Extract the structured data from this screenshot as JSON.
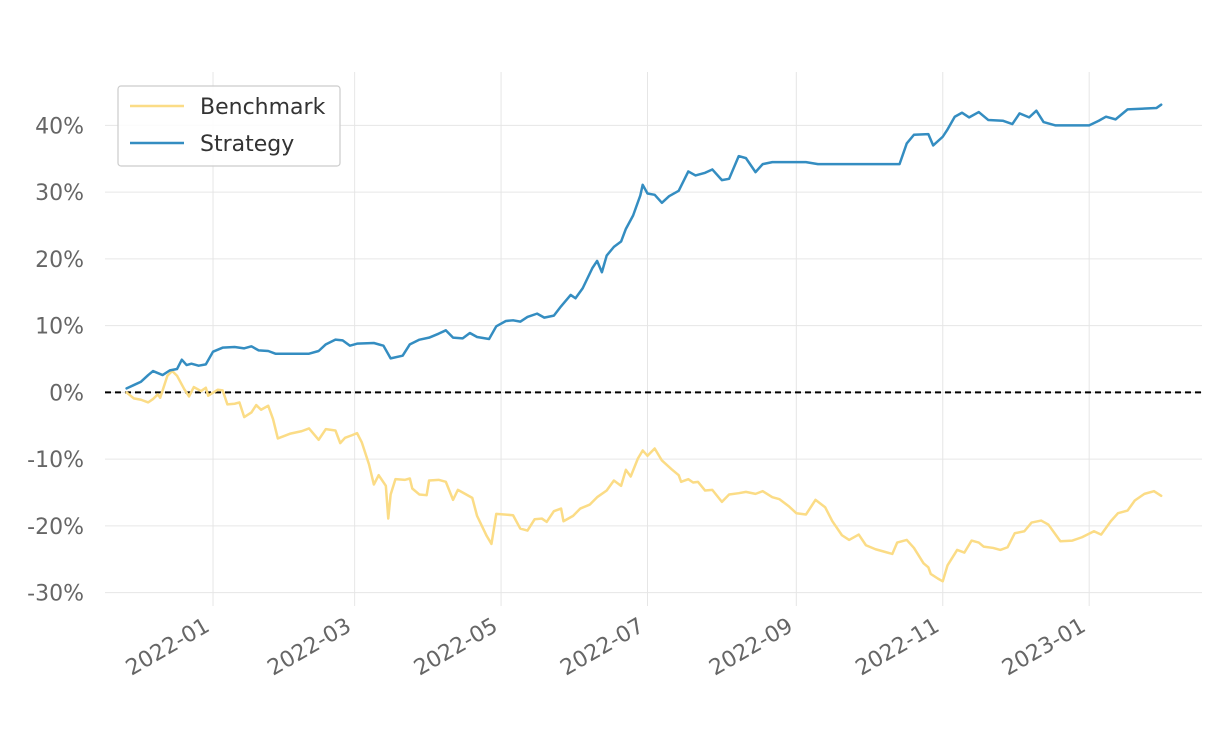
{
  "chart_data": {
    "type": "line",
    "title": "",
    "xlabel": "",
    "ylabel": "",
    "x_ticks": [
      "2022-01",
      "2022-03",
      "2022-05",
      "2022-07",
      "2022-09",
      "2022-11",
      "2023-01"
    ],
    "y_ticks": [
      {
        "value": 40,
        "label": "40%"
      },
      {
        "value": 30,
        "label": "30%"
      },
      {
        "value": 20,
        "label": "20%"
      },
      {
        "value": 10,
        "label": "10%"
      },
      {
        "value": 0,
        "label": "0%"
      },
      {
        "value": -10,
        "label": "-10%"
      },
      {
        "value": -20,
        "label": "-20%"
      },
      {
        "value": -30,
        "label": "-30%"
      }
    ],
    "xlim": [
      "2021-11-17",
      "2023-02-17"
    ],
    "ylim": [
      -32,
      48
    ],
    "grid": true,
    "zero_line": {
      "value": 0,
      "style": "dashed",
      "color": "#000000"
    },
    "legend": {
      "position": "top-left"
    },
    "series": [
      {
        "name": "Benchmark",
        "color": "#fbdc86",
        "points": [
          [
            "2021-11-26",
            0.0
          ],
          [
            "2021-11-29",
            -0.9
          ],
          [
            "2021-12-02",
            -1.1
          ],
          [
            "2021-12-05",
            -1.5
          ],
          [
            "2021-12-07",
            -1.0
          ],
          [
            "2021-12-09",
            -0.3
          ],
          [
            "2021-12-10",
            -0.8
          ],
          [
            "2021-12-13",
            2.5
          ],
          [
            "2021-12-15",
            3.2
          ],
          [
            "2021-12-17",
            2.5
          ],
          [
            "2021-12-20",
            0.5
          ],
          [
            "2021-12-22",
            -0.6
          ],
          [
            "2021-12-24",
            0.8
          ],
          [
            "2021-12-27",
            0.2
          ],
          [
            "2021-12-29",
            0.7
          ],
          [
            "2021-12-30",
            -0.5
          ],
          [
            "2022-01-03",
            0.4
          ],
          [
            "2022-01-05",
            0.3
          ],
          [
            "2022-01-07",
            -1.8
          ],
          [
            "2022-01-10",
            -1.7
          ],
          [
            "2022-01-12",
            -1.5
          ],
          [
            "2022-01-14",
            -3.7
          ],
          [
            "2022-01-17",
            -3.0
          ],
          [
            "2022-01-19",
            -1.9
          ],
          [
            "2022-01-21",
            -2.6
          ],
          [
            "2022-01-24",
            -2.0
          ],
          [
            "2022-01-26",
            -4.0
          ],
          [
            "2022-01-28",
            -6.9
          ],
          [
            "2022-02-02",
            -6.2
          ],
          [
            "2022-02-07",
            -5.8
          ],
          [
            "2022-02-10",
            -5.4
          ],
          [
            "2022-02-14",
            -7.1
          ],
          [
            "2022-02-17",
            -5.5
          ],
          [
            "2022-02-21",
            -5.7
          ],
          [
            "2022-02-23",
            -7.6
          ],
          [
            "2022-02-25",
            -6.8
          ],
          [
            "2022-02-28",
            -6.4
          ],
          [
            "2022-03-02",
            -6.1
          ],
          [
            "2022-03-04",
            -7.5
          ],
          [
            "2022-03-07",
            -10.8
          ],
          [
            "2022-03-09",
            -13.8
          ],
          [
            "2022-03-11",
            -12.4
          ],
          [
            "2022-03-14",
            -14.0
          ],
          [
            "2022-03-15",
            -18.9
          ],
          [
            "2022-03-16",
            -15.3
          ],
          [
            "2022-03-18",
            -13.0
          ],
          [
            "2022-03-22",
            -13.1
          ],
          [
            "2022-03-24",
            -12.9
          ],
          [
            "2022-03-25",
            -14.4
          ],
          [
            "2022-03-28",
            -15.3
          ],
          [
            "2022-03-31",
            -15.4
          ],
          [
            "2022-04-01",
            -13.2
          ],
          [
            "2022-04-05",
            -13.1
          ],
          [
            "2022-04-08",
            -13.4
          ],
          [
            "2022-04-11",
            -16.1
          ],
          [
            "2022-04-13",
            -14.6
          ],
          [
            "2022-04-15",
            -15.0
          ],
          [
            "2022-04-19",
            -15.8
          ],
          [
            "2022-04-21",
            -18.5
          ],
          [
            "2022-04-25",
            -21.5
          ],
          [
            "2022-04-27",
            -22.7
          ],
          [
            "2022-04-29",
            -18.2
          ],
          [
            "2022-05-06",
            -18.4
          ],
          [
            "2022-05-09",
            -20.4
          ],
          [
            "2022-05-12",
            -20.7
          ],
          [
            "2022-05-15",
            -19.0
          ],
          [
            "2022-05-18",
            -18.9
          ],
          [
            "2022-05-20",
            -19.4
          ],
          [
            "2022-05-23",
            -17.8
          ],
          [
            "2022-05-26",
            -17.4
          ],
          [
            "2022-05-27",
            -19.3
          ],
          [
            "2022-05-31",
            -18.5
          ],
          [
            "2022-06-03",
            -17.4
          ],
          [
            "2022-06-07",
            -16.8
          ],
          [
            "2022-06-10",
            -15.7
          ],
          [
            "2022-06-14",
            -14.7
          ],
          [
            "2022-06-17",
            -13.2
          ],
          [
            "2022-06-20",
            -14.0
          ],
          [
            "2022-06-22",
            -11.6
          ],
          [
            "2022-06-24",
            -12.6
          ],
          [
            "2022-06-27",
            -9.9
          ],
          [
            "2022-06-29",
            -8.7
          ],
          [
            "2022-07-01",
            -9.5
          ],
          [
            "2022-07-04",
            -8.4
          ],
          [
            "2022-07-07",
            -10.2
          ],
          [
            "2022-07-11",
            -11.5
          ],
          [
            "2022-07-14",
            -12.4
          ],
          [
            "2022-07-15",
            -13.4
          ],
          [
            "2022-07-18",
            -13.0
          ],
          [
            "2022-07-20",
            -13.5
          ],
          [
            "2022-07-22",
            -13.4
          ],
          [
            "2022-07-25",
            -14.7
          ],
          [
            "2022-07-28",
            -14.6
          ],
          [
            "2022-08-01",
            -16.4
          ],
          [
            "2022-08-04",
            -15.3
          ],
          [
            "2022-08-08",
            -15.1
          ],
          [
            "2022-08-11",
            -14.9
          ],
          [
            "2022-08-15",
            -15.2
          ],
          [
            "2022-08-18",
            -14.8
          ],
          [
            "2022-08-22",
            -15.7
          ],
          [
            "2022-08-25",
            -16.0
          ],
          [
            "2022-08-29",
            -17.1
          ],
          [
            "2022-09-01",
            -18.1
          ],
          [
            "2022-09-05",
            -18.3
          ],
          [
            "2022-09-09",
            -16.1
          ],
          [
            "2022-09-13",
            -17.2
          ],
          [
            "2022-09-16",
            -19.3
          ],
          [
            "2022-09-20",
            -21.4
          ],
          [
            "2022-09-23",
            -22.1
          ],
          [
            "2022-09-27",
            -21.3
          ],
          [
            "2022-09-30",
            -22.9
          ],
          [
            "2022-10-04",
            -23.5
          ],
          [
            "2022-10-07",
            -23.8
          ],
          [
            "2022-10-11",
            -24.2
          ],
          [
            "2022-10-13",
            -22.5
          ],
          [
            "2022-10-17",
            -22.1
          ],
          [
            "2022-10-20",
            -23.3
          ],
          [
            "2022-10-24",
            -25.6
          ],
          [
            "2022-10-26",
            -26.2
          ],
          [
            "2022-10-27",
            -27.2
          ],
          [
            "2022-10-30",
            -27.9
          ],
          [
            "2022-11-01",
            -28.3
          ],
          [
            "2022-11-03",
            -25.9
          ],
          [
            "2022-11-07",
            -23.6
          ],
          [
            "2022-11-10",
            -24.0
          ],
          [
            "2022-11-13",
            -22.2
          ],
          [
            "2022-11-16",
            -22.5
          ],
          [
            "2022-11-18",
            -23.1
          ],
          [
            "2022-11-22",
            -23.3
          ],
          [
            "2022-11-25",
            -23.6
          ],
          [
            "2022-11-28",
            -23.2
          ],
          [
            "2022-12-01",
            -21.1
          ],
          [
            "2022-12-05",
            -20.8
          ],
          [
            "2022-12-08",
            -19.5
          ],
          [
            "2022-12-12",
            -19.2
          ],
          [
            "2022-12-15",
            -19.8
          ],
          [
            "2022-12-20",
            -22.3
          ],
          [
            "2022-12-25",
            -22.2
          ],
          [
            "2022-12-29",
            -21.7
          ],
          [
            "2023-01-03",
            -20.8
          ],
          [
            "2023-01-06",
            -21.3
          ],
          [
            "2023-01-10",
            -19.3
          ],
          [
            "2023-01-13",
            -18.1
          ],
          [
            "2023-01-17",
            -17.7
          ],
          [
            "2023-01-20",
            -16.2
          ],
          [
            "2023-01-24",
            -15.2
          ],
          [
            "2023-01-28",
            -14.8
          ],
          [
            "2023-01-31",
            -15.5
          ]
        ]
      },
      {
        "name": "Strategy",
        "color": "#348dc1",
        "points": [
          [
            "2021-11-26",
            0.6
          ],
          [
            "2021-11-29",
            1.1
          ],
          [
            "2021-12-02",
            1.6
          ],
          [
            "2021-12-05",
            2.6
          ],
          [
            "2021-12-07",
            3.2
          ],
          [
            "2021-12-09",
            2.9
          ],
          [
            "2021-12-11",
            2.6
          ],
          [
            "2021-12-14",
            3.3
          ],
          [
            "2021-12-17",
            3.5
          ],
          [
            "2021-12-19",
            4.9
          ],
          [
            "2021-12-21",
            4.1
          ],
          [
            "2021-12-23",
            4.3
          ],
          [
            "2021-12-26",
            4.0
          ],
          [
            "2021-12-29",
            4.2
          ],
          [
            "2022-01-01",
            6.1
          ],
          [
            "2022-01-05",
            6.7
          ],
          [
            "2022-01-10",
            6.8
          ],
          [
            "2022-01-14",
            6.6
          ],
          [
            "2022-01-17",
            6.9
          ],
          [
            "2022-01-20",
            6.3
          ],
          [
            "2022-01-24",
            6.2
          ],
          [
            "2022-01-27",
            5.8
          ],
          [
            "2022-02-10",
            5.8
          ],
          [
            "2022-02-14",
            6.2
          ],
          [
            "2022-02-17",
            7.2
          ],
          [
            "2022-02-21",
            7.9
          ],
          [
            "2022-02-24",
            7.8
          ],
          [
            "2022-02-27",
            7.0
          ],
          [
            "2022-03-02",
            7.3
          ],
          [
            "2022-03-09",
            7.4
          ],
          [
            "2022-03-13",
            7.0
          ],
          [
            "2022-03-16",
            5.1
          ],
          [
            "2022-03-21",
            5.5
          ],
          [
            "2022-03-24",
            7.2
          ],
          [
            "2022-03-28",
            7.9
          ],
          [
            "2022-04-01",
            8.2
          ],
          [
            "2022-04-05",
            8.8
          ],
          [
            "2022-04-08",
            9.3
          ],
          [
            "2022-04-11",
            8.2
          ],
          [
            "2022-04-15",
            8.1
          ],
          [
            "2022-04-18",
            8.9
          ],
          [
            "2022-04-21",
            8.3
          ],
          [
            "2022-04-26",
            8.0
          ],
          [
            "2022-04-29",
            9.9
          ],
          [
            "2022-05-03",
            10.7
          ],
          [
            "2022-05-06",
            10.8
          ],
          [
            "2022-05-09",
            10.6
          ],
          [
            "2022-05-12",
            11.3
          ],
          [
            "2022-05-16",
            11.8
          ],
          [
            "2022-05-19",
            11.2
          ],
          [
            "2022-05-23",
            11.5
          ],
          [
            "2022-05-26",
            12.9
          ],
          [
            "2022-05-30",
            14.6
          ],
          [
            "2022-06-01",
            14.1
          ],
          [
            "2022-06-04",
            15.6
          ],
          [
            "2022-06-08",
            18.6
          ],
          [
            "2022-06-10",
            19.7
          ],
          [
            "2022-06-12",
            18.0
          ],
          [
            "2022-06-14",
            20.5
          ],
          [
            "2022-06-17",
            21.8
          ],
          [
            "2022-06-20",
            22.6
          ],
          [
            "2022-06-22",
            24.5
          ],
          [
            "2022-06-25",
            26.5
          ],
          [
            "2022-06-28",
            29.5
          ],
          [
            "2022-06-29",
            31.1
          ],
          [
            "2022-07-01",
            29.8
          ],
          [
            "2022-07-04",
            29.6
          ],
          [
            "2022-07-07",
            28.4
          ],
          [
            "2022-07-10",
            29.4
          ],
          [
            "2022-07-14",
            30.2
          ],
          [
            "2022-07-18",
            33.1
          ],
          [
            "2022-07-21",
            32.5
          ],
          [
            "2022-07-25",
            32.9
          ],
          [
            "2022-07-28",
            33.4
          ],
          [
            "2022-08-01",
            31.8
          ],
          [
            "2022-08-04",
            32.0
          ],
          [
            "2022-08-08",
            35.4
          ],
          [
            "2022-08-11",
            35.1
          ],
          [
            "2022-08-15",
            33.0
          ],
          [
            "2022-08-18",
            34.2
          ],
          [
            "2022-08-22",
            34.5
          ],
          [
            "2022-09-05",
            34.5
          ],
          [
            "2022-09-10",
            34.2
          ],
          [
            "2022-10-14",
            34.2
          ],
          [
            "2022-10-17",
            37.3
          ],
          [
            "2022-10-20",
            38.6
          ],
          [
            "2022-10-26",
            38.7
          ],
          [
            "2022-10-28",
            37.0
          ],
          [
            "2022-11-01",
            38.3
          ],
          [
            "2022-11-03",
            39.4
          ],
          [
            "2022-11-06",
            41.3
          ],
          [
            "2022-11-09",
            41.9
          ],
          [
            "2022-11-12",
            41.2
          ],
          [
            "2022-11-16",
            42.0
          ],
          [
            "2022-11-20",
            40.8
          ],
          [
            "2022-11-26",
            40.7
          ],
          [
            "2022-11-30",
            40.2
          ],
          [
            "2022-12-03",
            41.8
          ],
          [
            "2022-12-07",
            41.2
          ],
          [
            "2022-12-10",
            42.2
          ],
          [
            "2022-12-13",
            40.5
          ],
          [
            "2022-12-18",
            40.0
          ],
          [
            "2023-01-01",
            40.0
          ],
          [
            "2023-01-05",
            40.7
          ],
          [
            "2023-01-08",
            41.3
          ],
          [
            "2023-01-12",
            40.9
          ],
          [
            "2023-01-17",
            42.4
          ],
          [
            "2023-01-29",
            42.6
          ],
          [
            "2023-01-31",
            43.1
          ]
        ]
      }
    ]
  }
}
